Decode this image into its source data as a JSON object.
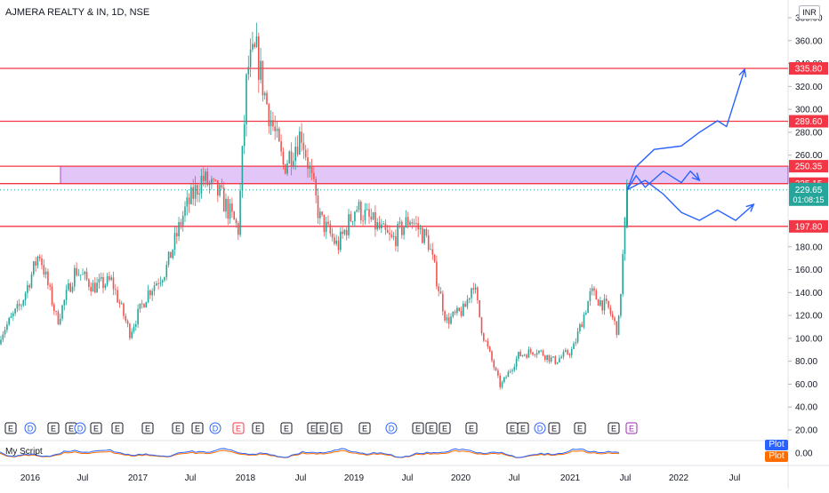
{
  "header": {
    "symbol_title": "AJMERA REALTY & IN, 1D, NSE",
    "currency": "INR"
  },
  "price_axis": {
    "ticks": [
      "380.00",
      "360.00",
      "340.00",
      "320.00",
      "300.00",
      "280.00",
      "260.00",
      "180.00",
      "160.00",
      "140.00",
      "120.00",
      "100.00",
      "80.00",
      "60.00",
      "40.00",
      "20.00"
    ]
  },
  "time_axis": {
    "labels": [
      "2016",
      "Jul",
      "2017",
      "Jul",
      "2018",
      "Jul",
      "2019",
      "Jul",
      "2020",
      "Jul",
      "2021",
      "Jul",
      "2022",
      "Jul"
    ]
  },
  "horizontal_levels": [
    {
      "value": 335.8,
      "label": "335.80",
      "color": "#f23645"
    },
    {
      "value": 289.6,
      "label": "289.60",
      "color": "#f23645"
    },
    {
      "value": 250.35,
      "label": "250.35",
      "color": "#f23645"
    },
    {
      "value": 235.15,
      "label": "235.15",
      "color": "#f23645"
    },
    {
      "value": 197.8,
      "label": "197.80",
      "color": "#f23645"
    }
  ],
  "current_price": {
    "label": "229.65",
    "countdown": "01:08:15",
    "color": "#26a69a"
  },
  "zone": {
    "from": 235.15,
    "to": 250.35,
    "fill": "#d9b3f5",
    "stroke": "#9c27b0"
  },
  "events": [
    "E",
    "D",
    "E",
    "E",
    "D",
    "E",
    "E",
    "E",
    "E",
    "E",
    "D",
    "E",
    "E",
    "E",
    "E",
    "E",
    "E",
    "E",
    "D",
    "E",
    "E",
    "E",
    "E",
    "E",
    "E",
    "D",
    "E",
    "E",
    "E",
    "E",
    "E",
    "E",
    "D",
    "E",
    "E",
    "E",
    "E"
  ],
  "indicator": {
    "name": "My Script",
    "value_label": "0.00",
    "legend": [
      {
        "label": "Plot",
        "color": "#2962ff"
      },
      {
        "label": "Plot",
        "color": "#ff6d00"
      }
    ]
  },
  "colors": {
    "up": "#26a69a",
    "down": "#ef5350",
    "arrow": "#2962ff",
    "level": "#f23645"
  },
  "chart_data": {
    "type": "candlestick",
    "title": "AJMERA REALTY & IN, 1D, NSE",
    "ylim": [
      20,
      380
    ],
    "x_range": [
      "2015-09",
      "2022-10"
    ],
    "series": [
      {
        "x": [
          "2015-09",
          "2015-12",
          "2016-02",
          "2016-04",
          "2016-06",
          "2016-08",
          "2016-10",
          "2016-12",
          "2017-02",
          "2017-04",
          "2017-06",
          "2017-08",
          "2017-10",
          "2017-12",
          "2018-01",
          "2018-02",
          "2018-03",
          "2018-05",
          "2018-07",
          "2018-09",
          "2018-11",
          "2019-01",
          "2019-03",
          "2019-05",
          "2019-07",
          "2019-09",
          "2019-11",
          "2020-01",
          "2020-02",
          "2020-03",
          "2020-05",
          "2020-07",
          "2020-09",
          "2020-11",
          "2021-01",
          "2021-03",
          "2021-05",
          "2021-06",
          "2021-07"
        ],
        "values": [
          95,
          130,
          175,
          115,
          160,
          145,
          150,
          105,
          140,
          160,
          210,
          240,
          225,
          195,
          335,
          350,
          310,
          250,
          280,
          205,
          180,
          215,
          200,
          185,
          205,
          185,
          115,
          125,
          150,
          105,
          58,
          85,
          90,
          80,
          90,
          140,
          125,
          105,
          229.65
        ]
      }
    ],
    "annotations": {
      "levels": [
        335.8,
        289.6,
        250.35,
        235.15,
        197.8
      ],
      "projection_paths": [
        [
          [
            "2021-07",
            229.65
          ],
          [
            "2021-08",
            250
          ],
          [
            "2021-10",
            265
          ],
          [
            "2022-01",
            268
          ],
          [
            "2022-03",
            280
          ],
          [
            "2022-05",
            290
          ],
          [
            "2022-06",
            285
          ],
          [
            "2022-08",
            335
          ]
        ],
        [
          [
            "2021-07",
            229.65
          ],
          [
            "2021-08",
            242
          ],
          [
            "2021-09",
            232
          ],
          [
            "2021-11",
            246
          ],
          [
            "2022-01",
            236
          ],
          [
            "2022-02",
            246
          ],
          [
            "2022-03",
            238
          ]
        ],
        [
          [
            "2021-07",
            229.65
          ],
          [
            "2021-09",
            238
          ],
          [
            "2021-11",
            226
          ],
          [
            "2022-01",
            210
          ],
          [
            "2022-03",
            203
          ],
          [
            "2022-05",
            212
          ],
          [
            "2022-07",
            203
          ],
          [
            "2022-09",
            217
          ]
        ]
      ]
    }
  }
}
